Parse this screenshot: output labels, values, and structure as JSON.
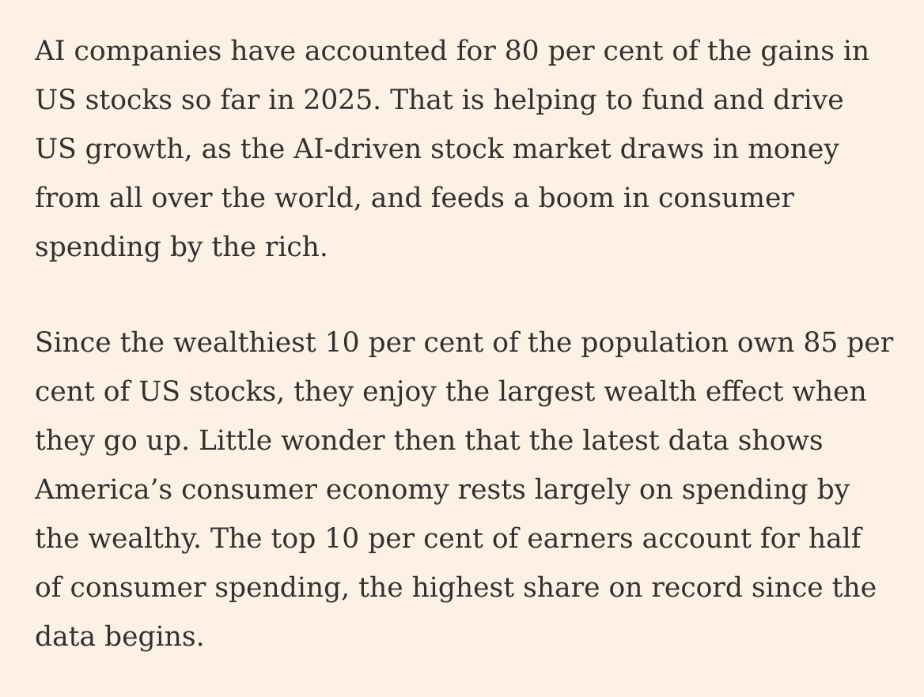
{
  "article": {
    "paragraphs": [
      {
        "lines": [
          "AI companies have accounted for 80 per cent of the gains in",
          "US stocks so far in 2025. That is helping to fund and drive",
          "US growth, as the AI-driven stock market draws in money",
          "from all over the world, and feeds a boom in consumer",
          "spending by the rich."
        ]
      },
      {
        "lines": [
          "Since the wealthiest 10 per cent of the population own 85 per",
          "cent of US stocks, they enjoy the largest wealth effect when",
          "they go up. Little wonder then that the latest data shows",
          "America’s consumer economy rests largely on spending by",
          "the wealthy. The top 10 per cent of earners account for half",
          "of consumer spending, the highest share on record since the",
          "data begins."
        ]
      }
    ]
  }
}
